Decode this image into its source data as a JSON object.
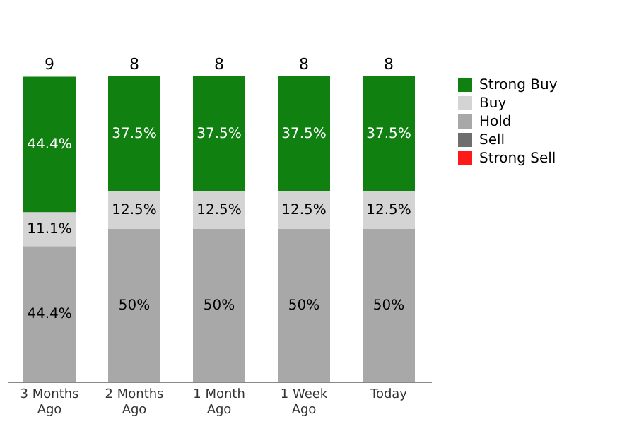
{
  "chart_data": {
    "type": "bar",
    "stacked": true,
    "categories": [
      "3 Months Ago",
      "2 Months Ago",
      "1 Month Ago",
      "1 Week Ago",
      "Today"
    ],
    "series": [
      {
        "name": "Strong Sell",
        "color": "#ff1a1a",
        "values": [
          0,
          0,
          0,
          0,
          0
        ],
        "value_labels": [
          null,
          null,
          null,
          null,
          null
        ]
      },
      {
        "name": "Sell",
        "color": "#6e6e6e",
        "values": [
          0,
          0,
          0,
          0,
          0
        ],
        "value_labels": [
          null,
          null,
          null,
          null,
          null
        ]
      },
      {
        "name": "Hold",
        "color": "#a8a8a8",
        "values": [
          44.4,
          50,
          50,
          50,
          50
        ],
        "value_labels": [
          "44.4%",
          "50%",
          "50%",
          "50%",
          "50%"
        ]
      },
      {
        "name": "Buy",
        "color": "#d4d4d4",
        "values": [
          11.1,
          12.5,
          12.5,
          12.5,
          12.5
        ],
        "value_labels": [
          "11.1%",
          "12.5%",
          "12.5%",
          "12.5%",
          "12.5%"
        ]
      },
      {
        "name": "Strong Buy",
        "color": "#108010",
        "values": [
          44.4,
          37.5,
          37.5,
          37.5,
          37.5
        ],
        "value_labels": [
          "44.4%",
          "37.5%",
          "37.5%",
          "37.5%",
          "37.5%"
        ]
      }
    ],
    "annotations": [
      {
        "text": "9",
        "x": "3 Months Ago",
        "y": 100
      },
      {
        "text": "8",
        "x": "2 Months Ago",
        "y": 100
      },
      {
        "text": "8",
        "x": "1 Month Ago",
        "y": 100
      },
      {
        "text": "8",
        "x": "1 Week Ago",
        "y": 100
      },
      {
        "text": "8",
        "x": "Today",
        "y": 100
      }
    ],
    "ylim": [
      0,
      100
    ],
    "tick_labels": "x",
    "legend": "right"
  }
}
